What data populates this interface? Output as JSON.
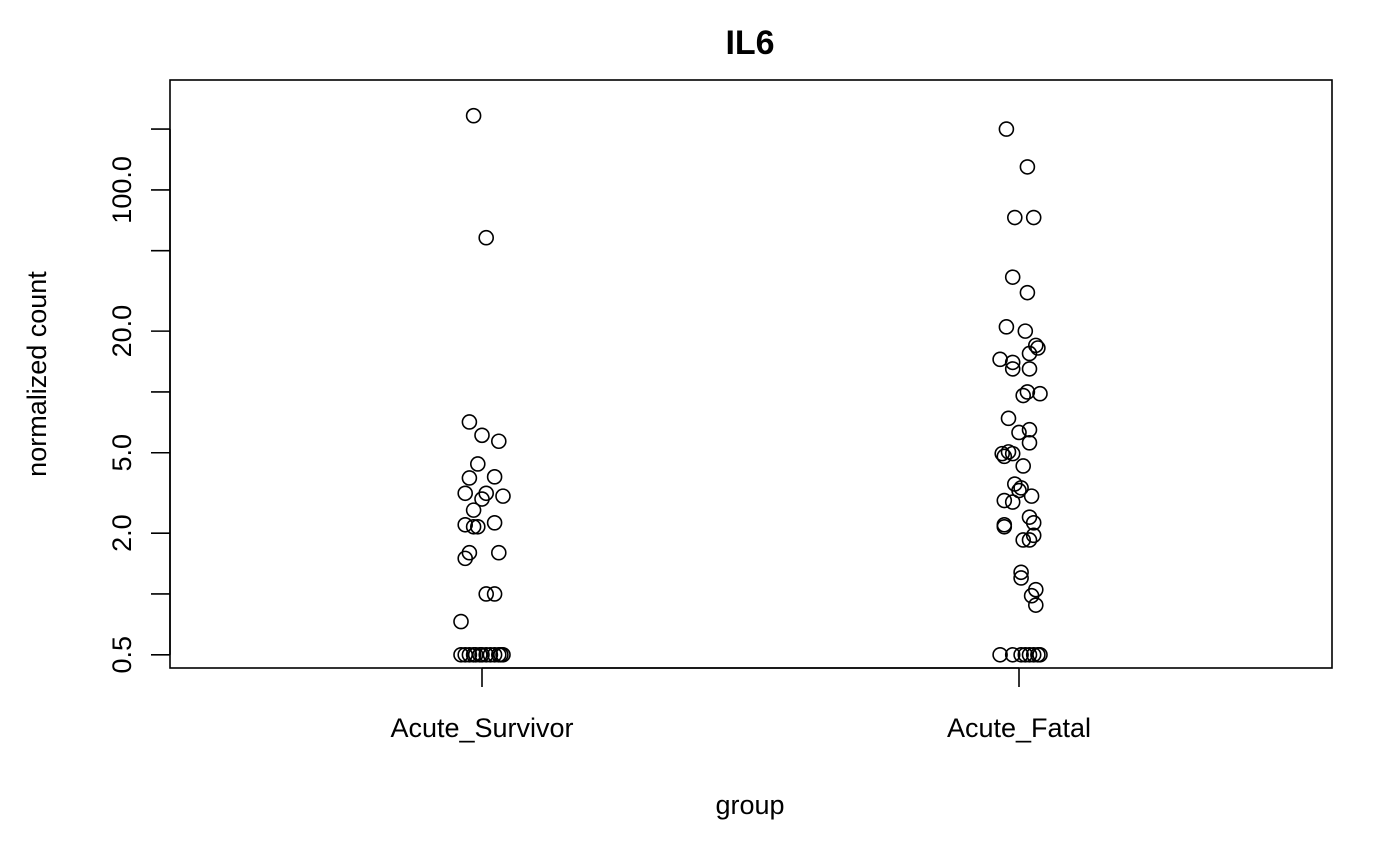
{
  "chart_data": {
    "type": "scatter",
    "title": "IL6",
    "xlabel": "group",
    "ylabel": "normalized count",
    "y_scale": "log",
    "ylim": [
      0.43,
      350
    ],
    "yticks": [
      0.5,
      1,
      2,
      5,
      10,
      20,
      50,
      100,
      200
    ],
    "ytick_labels": [
      "0.5",
      "",
      "2.0",
      "5.0",
      "",
      "20.0",
      "",
      "100.0",
      ""
    ],
    "categories": [
      "Acute_Survivor",
      "Acute_Fatal"
    ],
    "grid": false,
    "legend": "none",
    "series": [
      {
        "category": "Acute_Survivor",
        "points": [
          {
            "jitter": -0.02,
            "y": 233
          },
          {
            "jitter": 0.01,
            "y": 58
          },
          {
            "jitter": -0.03,
            "y": 7.1
          },
          {
            "jitter": 0.0,
            "y": 6.1
          },
          {
            "jitter": 0.04,
            "y": 5.7
          },
          {
            "jitter": -0.01,
            "y": 4.4
          },
          {
            "jitter": -0.03,
            "y": 3.75
          },
          {
            "jitter": 0.03,
            "y": 3.8
          },
          {
            "jitter": -0.04,
            "y": 3.15
          },
          {
            "jitter": 0.01,
            "y": 3.15
          },
          {
            "jitter": 0.05,
            "y": 3.05
          },
          {
            "jitter": 0.0,
            "y": 2.95
          },
          {
            "jitter": -0.02,
            "y": 2.6
          },
          {
            "jitter": -0.04,
            "y": 2.2
          },
          {
            "jitter": -0.02,
            "y": 2.15
          },
          {
            "jitter": -0.01,
            "y": 2.15
          },
          {
            "jitter": 0.03,
            "y": 2.25
          },
          {
            "jitter": -0.03,
            "y": 1.6
          },
          {
            "jitter": -0.04,
            "y": 1.5
          },
          {
            "jitter": 0.04,
            "y": 1.6
          },
          {
            "jitter": 0.01,
            "y": 1.0
          },
          {
            "jitter": 0.03,
            "y": 1.0
          },
          {
            "jitter": -0.05,
            "y": 0.73
          },
          {
            "jitter": -0.05,
            "y": 0.5
          },
          {
            "jitter": -0.04,
            "y": 0.5
          },
          {
            "jitter": -0.03,
            "y": 0.5
          },
          {
            "jitter": -0.02,
            "y": 0.5
          },
          {
            "jitter": -0.015,
            "y": 0.5
          },
          {
            "jitter": -0.005,
            "y": 0.5
          },
          {
            "jitter": 0.0,
            "y": 0.5
          },
          {
            "jitter": 0.01,
            "y": 0.5
          },
          {
            "jitter": 0.02,
            "y": 0.5
          },
          {
            "jitter": 0.03,
            "y": 0.5
          },
          {
            "jitter": 0.04,
            "y": 0.5
          },
          {
            "jitter": 0.045,
            "y": 0.5
          },
          {
            "jitter": 0.05,
            "y": 0.5
          }
        ]
      },
      {
        "category": "Acute_Fatal",
        "points": [
          {
            "jitter": -0.03,
            "y": 200
          },
          {
            "jitter": 0.02,
            "y": 130
          },
          {
            "jitter": -0.01,
            "y": 73
          },
          {
            "jitter": 0.035,
            "y": 73
          },
          {
            "jitter": -0.015,
            "y": 37
          },
          {
            "jitter": 0.02,
            "y": 31
          },
          {
            "jitter": -0.03,
            "y": 21
          },
          {
            "jitter": 0.015,
            "y": 20
          },
          {
            "jitter": 0.04,
            "y": 17
          },
          {
            "jitter": 0.045,
            "y": 16.5
          },
          {
            "jitter": 0.025,
            "y": 15.5
          },
          {
            "jitter": -0.045,
            "y": 14.5
          },
          {
            "jitter": -0.015,
            "y": 14
          },
          {
            "jitter": -0.015,
            "y": 13
          },
          {
            "jitter": 0.025,
            "y": 13
          },
          {
            "jitter": 0.02,
            "y": 10
          },
          {
            "jitter": 0.05,
            "y": 9.8
          },
          {
            "jitter": 0.01,
            "y": 9.6
          },
          {
            "jitter": -0.025,
            "y": 7.4
          },
          {
            "jitter": 0.0,
            "y": 6.3
          },
          {
            "jitter": 0.025,
            "y": 6.5
          },
          {
            "jitter": 0.025,
            "y": 5.6
          },
          {
            "jitter": -0.04,
            "y": 4.95
          },
          {
            "jitter": -0.025,
            "y": 5.05
          },
          {
            "jitter": -0.015,
            "y": 4.95
          },
          {
            "jitter": -0.035,
            "y": 4.8
          },
          {
            "jitter": 0.01,
            "y": 4.3
          },
          {
            "jitter": -0.01,
            "y": 3.5
          },
          {
            "jitter": 0.0,
            "y": 3.25
          },
          {
            "jitter": 0.005,
            "y": 3.35
          },
          {
            "jitter": -0.035,
            "y": 2.9
          },
          {
            "jitter": -0.015,
            "y": 2.85
          },
          {
            "jitter": 0.03,
            "y": 3.05
          },
          {
            "jitter": 0.025,
            "y": 2.4
          },
          {
            "jitter": 0.035,
            "y": 2.25
          },
          {
            "jitter": -0.035,
            "y": 2.2
          },
          {
            "jitter": -0.035,
            "y": 2.15
          },
          {
            "jitter": 0.035,
            "y": 1.95
          },
          {
            "jitter": 0.01,
            "y": 1.85
          },
          {
            "jitter": 0.025,
            "y": 1.85
          },
          {
            "jitter": 0.005,
            "y": 1.28
          },
          {
            "jitter": 0.005,
            "y": 1.2
          },
          {
            "jitter": 0.04,
            "y": 1.05
          },
          {
            "jitter": 0.03,
            "y": 0.98
          },
          {
            "jitter": 0.04,
            "y": 0.88
          },
          {
            "jitter": -0.045,
            "y": 0.5
          },
          {
            "jitter": -0.015,
            "y": 0.5
          },
          {
            "jitter": 0.005,
            "y": 0.5
          },
          {
            "jitter": 0.015,
            "y": 0.5
          },
          {
            "jitter": 0.025,
            "y": 0.5
          },
          {
            "jitter": 0.035,
            "y": 0.5
          },
          {
            "jitter": 0.045,
            "y": 0.5
          },
          {
            "jitter": 0.05,
            "y": 0.5
          }
        ]
      }
    ]
  }
}
